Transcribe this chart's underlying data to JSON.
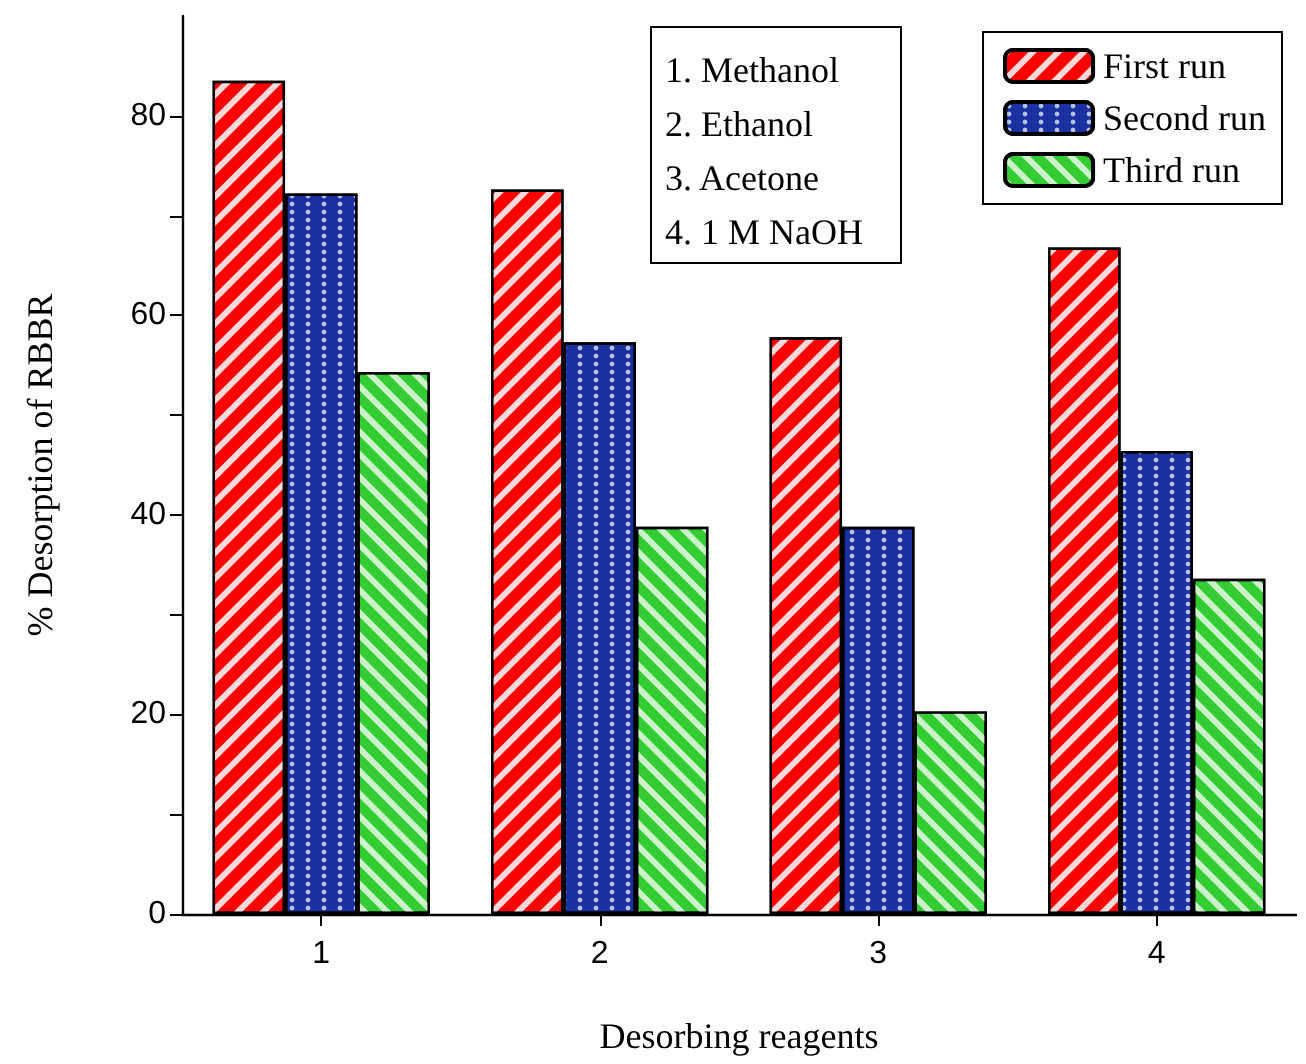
{
  "chart_data": {
    "type": "bar",
    "xlabel": "Desorbing reagents",
    "ylabel": "% Desorption of RBBR",
    "categories": [
      "1",
      "2",
      "3",
      "4"
    ],
    "series": [
      {
        "name": "First run",
        "color": "#ff0000",
        "values": [
          83.5,
          72.6,
          57.8,
          66.8
        ]
      },
      {
        "name": "Second run",
        "color": "#1a2fa0",
        "values": [
          72.2,
          57.3,
          38.8,
          46.4
        ]
      },
      {
        "name": "Third run",
        "color": "#33cc33",
        "values": [
          54.3,
          38.8,
          20.3,
          33.6
        ]
      }
    ],
    "ylim": [
      0,
      90
    ],
    "yticks": [
      0,
      {
        "value": 10,
        "label": null
      },
      20,
      {
        "value": 30,
        "label": null
      },
      40,
      {
        "value": 50,
        "label": null
      },
      60,
      {
        "value": 70,
        "label": null
      },
      80
    ],
    "annotations": [
      "1. Methanol",
      "2. Ethanol",
      "3. Acetone",
      "4. 1 M NaOH"
    ],
    "legend": "top right",
    "grid": false
  }
}
